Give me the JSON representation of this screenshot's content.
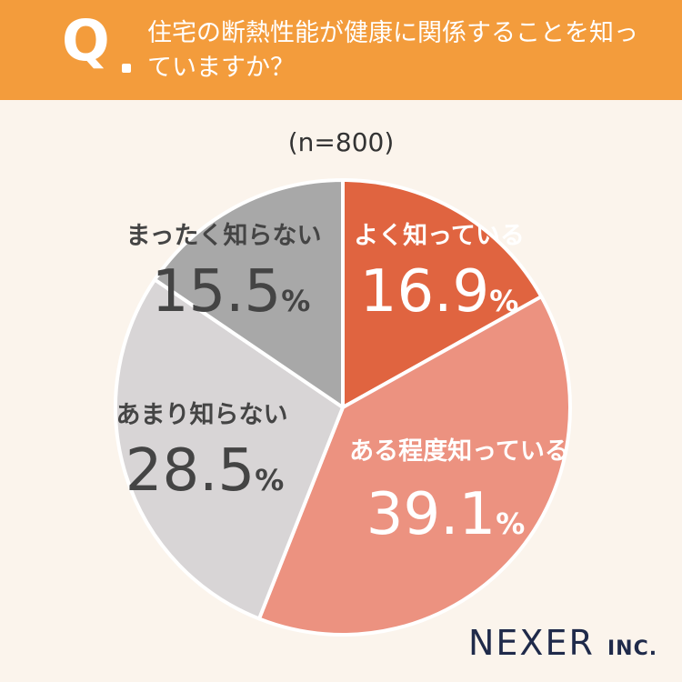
{
  "header": {
    "q_mark": "Q",
    "question": "住宅の断熱性能が健康に関係することを知っていますか？"
  },
  "sample_size": "(n=800)",
  "chart_data": {
    "type": "pie",
    "slices": [
      {
        "label": "よく知っている",
        "value": 16.9,
        "display": "16.9",
        "color": "#e06440",
        "label_color": "#ffffff"
      },
      {
        "label": "ある程度知っている",
        "value": 39.1,
        "display": "39.1",
        "color": "#ec9280",
        "label_color": "#ffffff"
      },
      {
        "label": "あまり知らない",
        "value": 28.5,
        "display": "28.5",
        "color": "#d8d5d6",
        "label_color": "#444444"
      },
      {
        "label": "まったく知らない",
        "value": 15.5,
        "display": "15.5",
        "color": "#a8a8a8",
        "label_color": "#444444"
      }
    ],
    "unit": "%",
    "start": "12 o'clock",
    "direction": "clockwise"
  },
  "logo": {
    "brand": "NEXER",
    "suffix": "INC."
  }
}
